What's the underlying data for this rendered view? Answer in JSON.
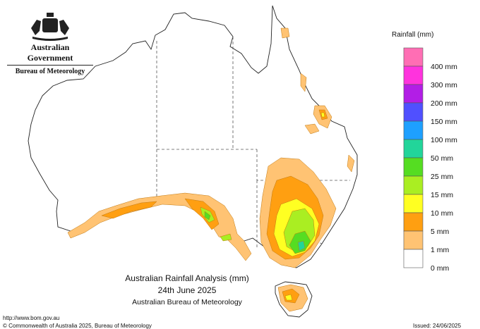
{
  "branding": {
    "government": "Australian Government",
    "department": "Bureau of Meteorology",
    "crest_icon": "commonwealth-coat-of-arms"
  },
  "map": {
    "title": "Australian Rainfall Analysis (mm)",
    "date": "24th June 2025",
    "source": "Australian Bureau of Meteorology"
  },
  "legend": {
    "title": "Rainfall (mm)",
    "bins": [
      {
        "label": "",
        "color": "#ff6eb4"
      },
      {
        "label": "400 mm",
        "color": "#ff33dd"
      },
      {
        "label": "300 mm",
        "color": "#b21ee6"
      },
      {
        "label": "200 mm",
        "color": "#5050ff"
      },
      {
        "label": "150 mm",
        "color": "#1ea0ff"
      },
      {
        "label": "100 mm",
        "color": "#22d59a"
      },
      {
        "label": "50 mm",
        "color": "#55dd22"
      },
      {
        "label": "25 mm",
        "color": "#aaee22"
      },
      {
        "label": "15 mm",
        "color": "#ffff22"
      },
      {
        "label": "10 mm",
        "color": "#ff9f11"
      },
      {
        "label": "5 mm",
        "color": "#ffc373"
      },
      {
        "label": "1 mm",
        "color": "#ffffff"
      },
      {
        "label": "0 mm",
        "color": null
      }
    ]
  },
  "footer": {
    "url": "http://www.bom.gov.au",
    "copyright": "© Commonwealth of Australia 2025, Bureau of Meteorology",
    "issued": "Issued: 24/06/2025"
  }
}
